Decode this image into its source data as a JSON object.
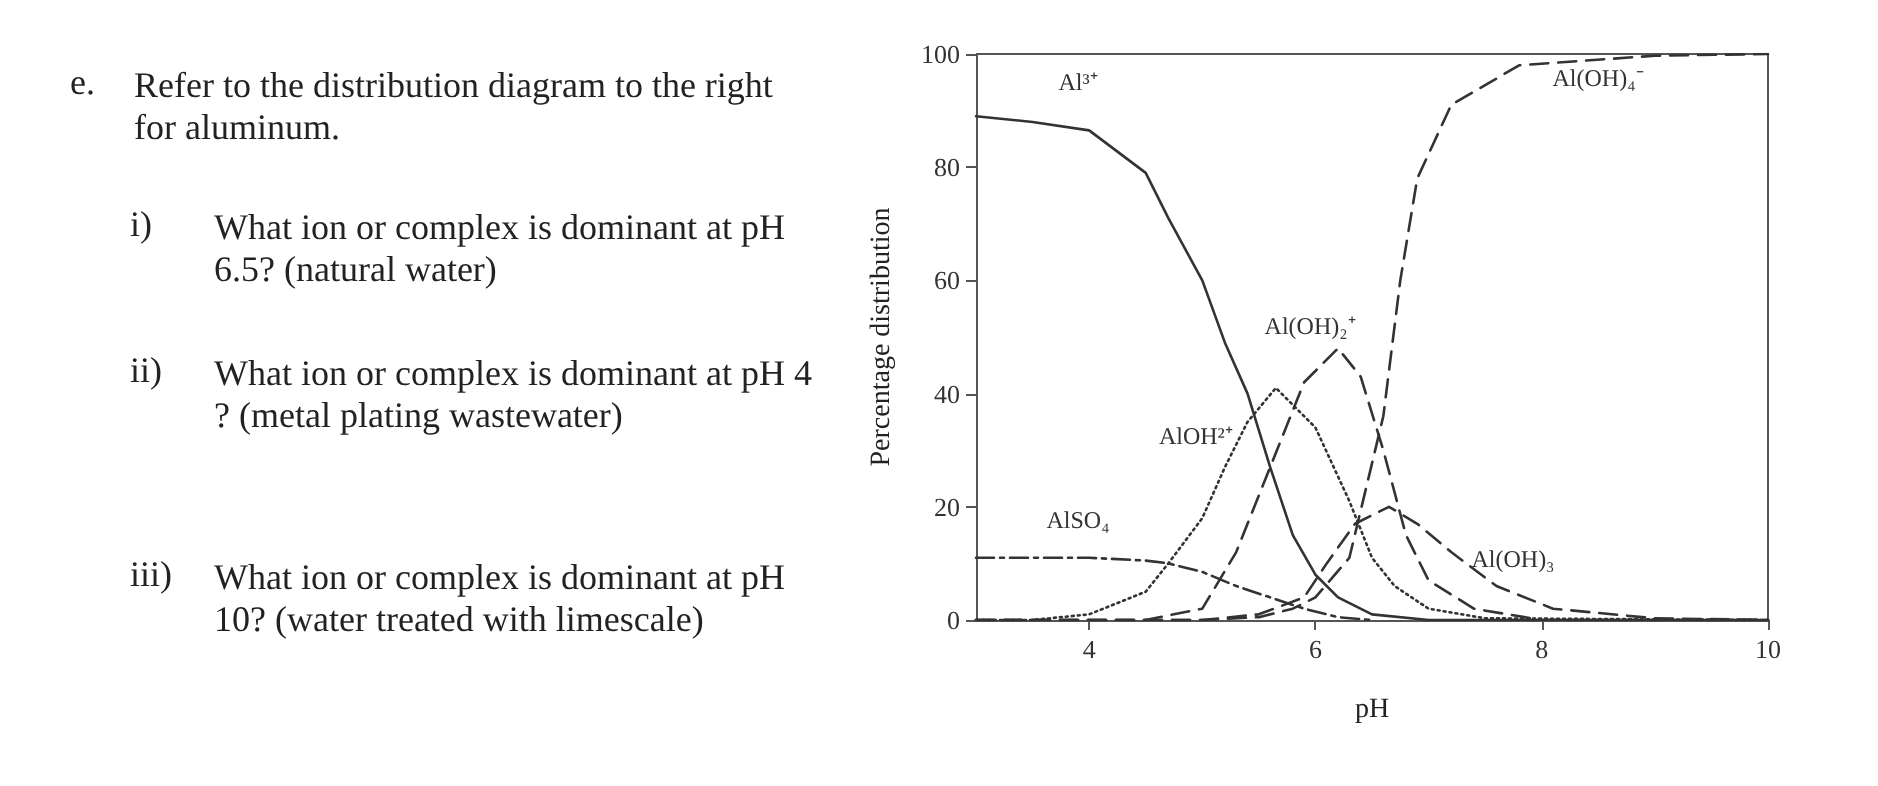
{
  "chart_data": {
    "type": "line",
    "xlabel": "pH",
    "ylabel": "Percentage distribution",
    "xlim": [
      3,
      10
    ],
    "xticks": [
      4,
      6,
      8,
      10
    ],
    "ylim": [
      0,
      100
    ],
    "yticks": [
      0,
      20,
      40,
      60,
      80,
      100
    ],
    "grid": false,
    "legend": false,
    "marker": "none",
    "annotations": [
      "e. Refer to the distribution diagram to the right for aluminum.",
      "i) What ion or complex is dominant at pH 6.5? (natural water)",
      "ii) What ion or complex is dominant at pH 4? (metal plating wastewater)",
      "iii) What ion or complex is dominant at pH 10? (water treated with limescale)"
    ],
    "series": [
      {
        "name": "Al³⁺",
        "color": "#333333",
        "line_style": "solid",
        "x": [
          3,
          3.5,
          4,
          4.5,
          4.7,
          5,
          5.2,
          5.4,
          5.6,
          5.8,
          6,
          6.2,
          6.5,
          7,
          10
        ],
        "values": [
          89,
          88,
          86.5,
          79,
          71,
          60,
          49,
          40,
          27,
          15,
          8,
          4,
          1,
          0,
          0
        ]
      },
      {
        "name": "AlOH²⁺",
        "color": "#333333",
        "line_style": "dotted",
        "x": [
          3,
          3.5,
          4,
          4.5,
          4.7,
          5,
          5.2,
          5.4,
          5.65,
          6,
          6.3,
          6.5,
          6.7,
          7,
          7.5,
          10
        ],
        "values": [
          0,
          0,
          1,
          5,
          10,
          18,
          27,
          35,
          41,
          34,
          21,
          11,
          6,
          2,
          0.3,
          0
        ]
      },
      {
        "name": "Al(OH)₂⁺",
        "color": "#333333",
        "line_style": "dashed",
        "x": [
          3,
          4.5,
          5,
          5.3,
          5.6,
          5.9,
          6.2,
          6.4,
          6.6,
          6.8,
          7,
          7.4,
          8,
          10
        ],
        "values": [
          0,
          0,
          2,
          12,
          27,
          42,
          48,
          43,
          30,
          15,
          7,
          2,
          0,
          0
        ]
      },
      {
        "name": "Al(OH)₃",
        "color": "#333333",
        "line_style": "dashed",
        "x": [
          3,
          5,
          5.5,
          5.9,
          6.1,
          6.35,
          6.65,
          6.9,
          7.2,
          7.6,
          8.1,
          9,
          10
        ],
        "values": [
          0,
          0,
          1,
          4,
          10,
          17,
          20,
          17,
          12,
          6,
          2,
          0.3,
          0
        ]
      },
      {
        "name": "Al(OH)₄⁻",
        "color": "#333333",
        "line_style": "dashed",
        "x": [
          3,
          5,
          5.5,
          5.8,
          6,
          6.3,
          6.6,
          6.75,
          6.9,
          7.2,
          7.8,
          9,
          10
        ],
        "values": [
          0,
          0,
          0.5,
          2,
          4,
          11,
          36,
          60,
          78,
          91,
          98,
          99.7,
          100
        ]
      },
      {
        "name": "AlSO₄",
        "color": "#333333",
        "line_style": "dashdot",
        "x": [
          3,
          4,
          4.5,
          4.7,
          5,
          5.3,
          5.6,
          5.9,
          6.2,
          6.5
        ],
        "values": [
          11,
          11,
          10.5,
          10,
          8.5,
          6,
          4,
          2,
          0.5,
          0
        ]
      }
    ]
  }
}
